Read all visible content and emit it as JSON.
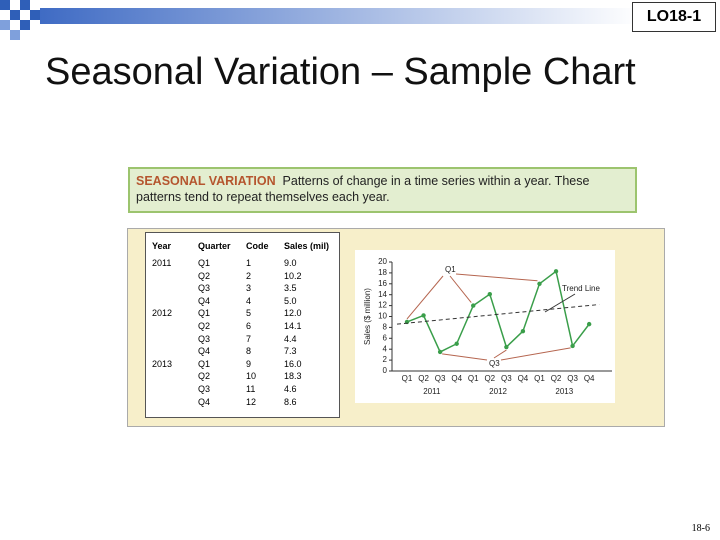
{
  "slide": {
    "code": "LO18-1",
    "title": "Seasonal Variation – Sample Chart",
    "term": "SEASONAL VARIATION",
    "definition": "Patterns of change in a time series within a year. These patterns tend to repeat themselves each year.",
    "page": "18-6"
  },
  "table": {
    "columns": [
      "Year",
      "Quarter",
      "Code",
      "Sales (mil)"
    ],
    "rows": [
      [
        "2011",
        "Q1",
        "1",
        "9.0"
      ],
      [
        "",
        "Q2",
        "2",
        "10.2"
      ],
      [
        "",
        "Q3",
        "3",
        "3.5"
      ],
      [
        "",
        "Q4",
        "4",
        "5.0"
      ],
      [
        "2012",
        "Q1",
        "5",
        "12.0"
      ],
      [
        "",
        "Q2",
        "6",
        "14.1"
      ],
      [
        "",
        "Q3",
        "7",
        "4.4"
      ],
      [
        "",
        "Q4",
        "8",
        "7.3"
      ],
      [
        "2013",
        "Q1",
        "9",
        "16.0"
      ],
      [
        "",
        "Q2",
        "10",
        "18.3"
      ],
      [
        "",
        "Q3",
        "11",
        "4.6"
      ],
      [
        "",
        "Q4",
        "12",
        "8.6"
      ]
    ]
  },
  "chart_data": {
    "type": "line",
    "y_label": "Sales ($ million)",
    "categories": [
      "Q1",
      "Q2",
      "Q3",
      "Q4",
      "Q1",
      "Q2",
      "Q3",
      "Q4",
      "Q1",
      "Q2",
      "Q3",
      "Q4"
    ],
    "years": [
      "2011",
      "2012",
      "2013"
    ],
    "series": [
      {
        "name": "Sales",
        "color": "#3a9e4a",
        "values": [
          9.0,
          10.2,
          3.5,
          5.0,
          12.0,
          14.1,
          4.4,
          7.3,
          16.0,
          18.3,
          4.6,
          8.6
        ]
      }
    ],
    "trend": {
      "label": "Trend Line",
      "start": 8.6,
      "end": 12.2
    },
    "annotations": [
      "Q1",
      "Q3"
    ],
    "ylim": [
      0,
      20
    ],
    "yticks": [
      0,
      2,
      4,
      6,
      8,
      10,
      12,
      14,
      16,
      18,
      20
    ]
  }
}
